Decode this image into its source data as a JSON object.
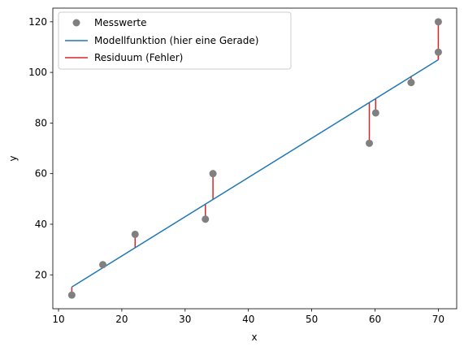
{
  "chart_data": {
    "type": "scatter",
    "xlabel": "x",
    "ylabel": "y",
    "xlim": [
      9.1,
      72.9
    ],
    "ylim": [
      6.6,
      125.4
    ],
    "xticks": [
      10,
      20,
      30,
      40,
      50,
      60,
      70
    ],
    "yticks": [
      20,
      40,
      60,
      80,
      100,
      120
    ],
    "grid": false,
    "legend_position": "top-left",
    "series": [
      {
        "name": "Messwerte",
        "kind": "points",
        "color": "#808080",
        "x": [
          12.1,
          17.0,
          22.1,
          33.2,
          34.4,
          59.1,
          60.1,
          65.7,
          70.0,
          70.0
        ],
        "y": [
          12.0,
          24.0,
          36.0,
          42.0,
          60.0,
          72.0,
          84.0,
          96.0,
          108.0,
          120.0
        ]
      },
      {
        "name": "Modellfunktion (hier eine Gerade)",
        "kind": "line",
        "color": "#1f77b4",
        "x": [
          12.1,
          70.0
        ],
        "y": [
          15.2,
          105.0
        ]
      },
      {
        "name": "Residuum (Fehler)",
        "kind": "residuals",
        "color": "#d62728"
      }
    ]
  }
}
